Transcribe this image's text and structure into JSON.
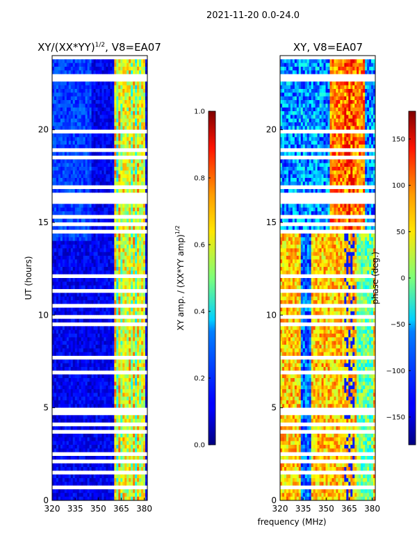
{
  "chart_data": [
    {
      "type": "heatmap",
      "suptitle": "2021-11-20 0.0-24.0",
      "title": "XY/(XX*YY)",
      "title_exponent": "1/2",
      "title_suffix": ", V8=EA07",
      "xlabel": "",
      "ylabel": "UT (hours)",
      "xlim": [
        320,
        382
      ],
      "ylim": [
        0,
        24
      ],
      "xticks": [
        320,
        335,
        350,
        365,
        380
      ],
      "yticks": [
        0,
        5,
        10,
        15,
        20
      ],
      "colorbar": {
        "label": "XY amp. / (XX*YY amp)",
        "label_exponent": "1/2",
        "range": [
          0.0,
          1.0
        ],
        "ticks": [
          "0.0",
          "0.2",
          "0.4",
          "0.6",
          "0.8",
          "1.0"
        ],
        "colormap": "jet"
      }
    },
    {
      "type": "heatmap",
      "title": "XY, V8=EA07",
      "xlabel": "frequency (MHz)",
      "ylabel": "",
      "xlim": [
        320,
        382
      ],
      "ylim": [
        0,
        24
      ],
      "xticks": [
        320,
        335,
        350,
        365,
        380
      ],
      "yticks": [
        0,
        5,
        10,
        15,
        20
      ],
      "colorbar": {
        "label": "phase (deg.)",
        "range": [
          -180,
          180
        ],
        "ticks": [
          "150",
          "100",
          "50",
          "0",
          "−50",
          "−100",
          "−150"
        ],
        "colormap": "jet"
      }
    }
  ]
}
